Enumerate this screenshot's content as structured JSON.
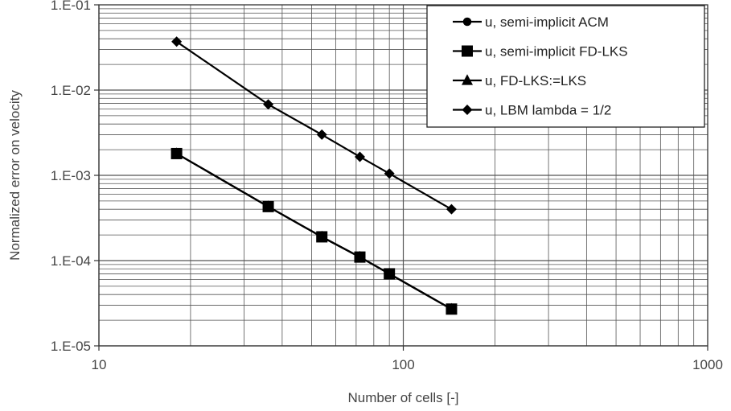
{
  "chart_data": {
    "type": "scatter",
    "title": "",
    "xlabel": "Number of cells [-]",
    "ylabel": "Normalized error on velocity",
    "x_scale": "log",
    "y_scale": "log",
    "xlim": [
      10,
      1000
    ],
    "ylim": [
      1e-05,
      0.1
    ],
    "x_ticks": [
      {
        "value": 10,
        "label": "10"
      },
      {
        "value": 100,
        "label": "100"
      },
      {
        "value": 1000,
        "label": "1000"
      }
    ],
    "y_ticks": [
      {
        "value": 0.1,
        "label": "1.E-01"
      },
      {
        "value": 0.01,
        "label": "1.E-02"
      },
      {
        "value": 0.001,
        "label": "1.E-03"
      },
      {
        "value": 0.0001,
        "label": "1.E-04"
      },
      {
        "value": 1e-05,
        "label": "1.E-05"
      }
    ],
    "grid": true,
    "legend_position": "top-right",
    "series": [
      {
        "name": "u, semi-implicit ACM",
        "marker": "circle",
        "points": [
          {
            "x": 18,
            "y": 0.0018
          },
          {
            "x": 36,
            "y": 0.00043
          },
          {
            "x": 54,
            "y": 0.00019
          },
          {
            "x": 72,
            "y": 0.00011
          },
          {
            "x": 90,
            "y": 7e-05
          },
          {
            "x": 144,
            "y": 2.7e-05
          }
        ]
      },
      {
        "name": "u, semi-implicit FD-LKS",
        "marker": "square",
        "points": [
          {
            "x": 18,
            "y": 0.0018
          },
          {
            "x": 36,
            "y": 0.00043
          },
          {
            "x": 54,
            "y": 0.00019
          },
          {
            "x": 72,
            "y": 0.00011
          },
          {
            "x": 90,
            "y": 7e-05
          },
          {
            "x": 144,
            "y": 2.7e-05
          }
        ]
      },
      {
        "name": "u, FD-LKS:=LKS",
        "marker": "triangle",
        "points": [
          {
            "x": 18,
            "y": 0.0018
          },
          {
            "x": 36,
            "y": 0.00043
          },
          {
            "x": 54,
            "y": 0.00019
          },
          {
            "x": 72,
            "y": 0.00011
          },
          {
            "x": 90,
            "y": 7e-05
          },
          {
            "x": 144,
            "y": 2.7e-05
          }
        ]
      },
      {
        "name": "u, LBM lambda = 1/2",
        "marker": "diamond",
        "points": [
          {
            "x": 18,
            "y": 0.037
          },
          {
            "x": 36,
            "y": 0.0068
          },
          {
            "x": 54,
            "y": 0.003
          },
          {
            "x": 72,
            "y": 0.00165
          },
          {
            "x": 90,
            "y": 0.00105
          },
          {
            "x": 144,
            "y": 0.0004
          }
        ]
      }
    ],
    "colors": {
      "series": "#000000",
      "grid": "#555555",
      "text": "#444444",
      "background": "#ffffff"
    }
  }
}
